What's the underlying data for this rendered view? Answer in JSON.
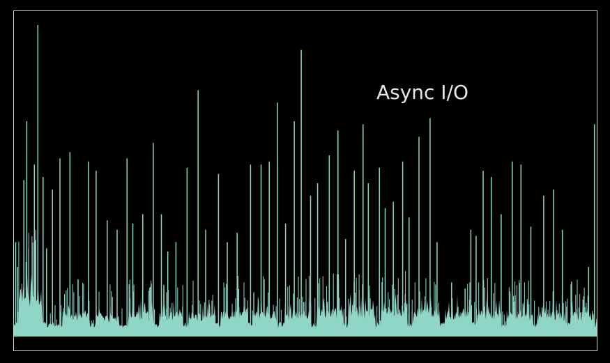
{
  "chart_data": {
    "type": "area",
    "title": "",
    "xlabel": "",
    "ylabel": "",
    "annotation": "Async I/O",
    "grid": false,
    "legend": "none",
    "colors": {
      "background": "#000000",
      "frame": "#d8d8d8",
      "series": "#8fd6c6",
      "annotation": "#e6e6e6"
    },
    "series": [
      {
        "baseline": 0.04,
        "bursts": [
          {
            "start": 0.8,
            "end": 4.8,
            "level": 0.12
          },
          {
            "start": 8.3,
            "end": 13.0,
            "level": 0.06
          },
          {
            "start": 14.0,
            "end": 18.0,
            "level": 0.055
          },
          {
            "start": 19.5,
            "end": 24.0,
            "level": 0.06
          },
          {
            "start": 25.0,
            "end": 29.0,
            "level": 0.055
          },
          {
            "start": 30.0,
            "end": 34.5,
            "level": 0.06
          },
          {
            "start": 35.5,
            "end": 40.0,
            "level": 0.065
          },
          {
            "start": 41.0,
            "end": 45.0,
            "level": 0.065
          },
          {
            "start": 46.5,
            "end": 51.0,
            "level": 0.065
          },
          {
            "start": 52.0,
            "end": 56.5,
            "level": 0.07
          },
          {
            "start": 57.5,
            "end": 62.0,
            "level": 0.07
          },
          {
            "start": 63.0,
            "end": 67.5,
            "level": 0.07
          },
          {
            "start": 68.5,
            "end": 73.0,
            "level": 0.07
          },
          {
            "start": 74.0,
            "end": 78.5,
            "level": 0.065
          },
          {
            "start": 79.5,
            "end": 83.5,
            "level": 0.065
          },
          {
            "start": 84.5,
            "end": 89.0,
            "level": 0.06
          },
          {
            "start": 89.8,
            "end": 94.5,
            "level": 0.06
          },
          {
            "start": 95.5,
            "end": 99.5,
            "level": 0.06
          }
        ],
        "spikes": [
          [
            0.3,
            0.3
          ],
          [
            0.6,
            0.22
          ],
          [
            1.7,
            0.5
          ],
          [
            2.2,
            0.69
          ],
          [
            3.5,
            0.55
          ],
          [
            4.1,
            1.0
          ],
          [
            5.0,
            0.51
          ],
          [
            5.6,
            0.28
          ],
          [
            6.6,
            0.47
          ],
          [
            7.9,
            0.57
          ],
          [
            9.6,
            0.59
          ],
          [
            11.0,
            0.18
          ],
          [
            12.8,
            0.56
          ],
          [
            14.1,
            0.53
          ],
          [
            16.0,
            0.37
          ],
          [
            17.7,
            0.34
          ],
          [
            19.4,
            0.57
          ],
          [
            20.4,
            0.36
          ],
          [
            22.1,
            0.39
          ],
          [
            23.9,
            0.62
          ],
          [
            25.3,
            0.39
          ],
          [
            26.4,
            0.27
          ],
          [
            27.8,
            0.3
          ],
          [
            29.7,
            0.54
          ],
          [
            31.6,
            0.79
          ],
          [
            32.9,
            0.34
          ],
          [
            35.1,
            0.52
          ],
          [
            36.6,
            0.3
          ],
          [
            38.3,
            0.33
          ],
          [
            40.6,
            0.55
          ],
          [
            42.4,
            0.55
          ],
          [
            43.8,
            0.56
          ],
          [
            45.2,
            0.75
          ],
          [
            46.6,
            0.36
          ],
          [
            48.1,
            0.69
          ],
          [
            49.3,
            0.92
          ],
          [
            50.9,
            0.45
          ],
          [
            52.1,
            0.49
          ],
          [
            54.1,
            0.58
          ],
          [
            55.6,
            0.66
          ],
          [
            56.9,
            0.31
          ],
          [
            58.4,
            0.53
          ],
          [
            59.9,
            0.68
          ],
          [
            60.8,
            0.49
          ],
          [
            62.7,
            0.54
          ],
          [
            63.7,
            0.41
          ],
          [
            65.1,
            0.43
          ],
          [
            66.7,
            0.56
          ],
          [
            67.8,
            0.38
          ],
          [
            69.5,
            0.64
          ],
          [
            71.4,
            0.7
          ],
          [
            72.6,
            0.3
          ],
          [
            75.1,
            0.17
          ],
          [
            77.4,
            0.15
          ],
          [
            78.4,
            0.34
          ],
          [
            79.3,
            0.32
          ],
          [
            80.5,
            0.53
          ],
          [
            81.9,
            0.51
          ],
          [
            83.6,
            0.39
          ],
          [
            85.5,
            0.56
          ],
          [
            87.0,
            0.55
          ],
          [
            88.7,
            0.35
          ],
          [
            90.9,
            0.45
          ],
          [
            92.6,
            0.47
          ],
          [
            94.1,
            0.34
          ],
          [
            98.6,
            0.22
          ],
          [
            99.6,
            0.68
          ]
        ]
      }
    ]
  }
}
